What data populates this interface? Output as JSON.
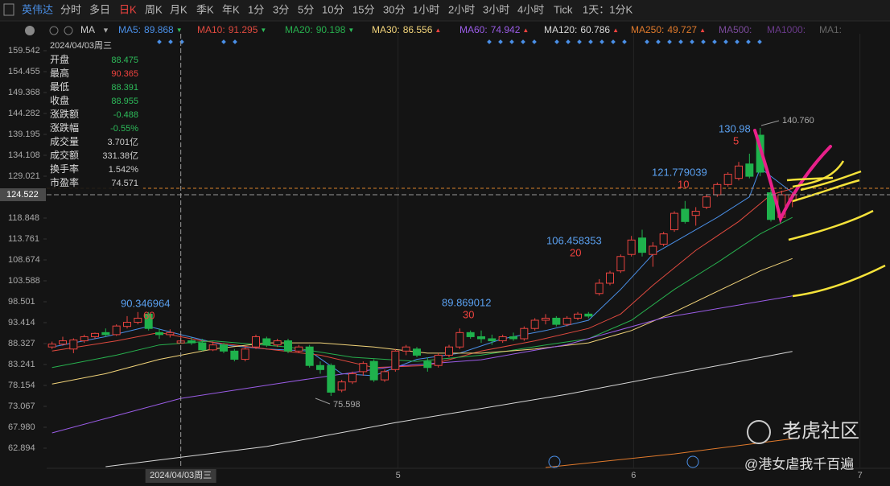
{
  "toolbar": {
    "stock": "英伟达",
    "periods": [
      "分时",
      "多日",
      "日K",
      "周K",
      "月K",
      "季K",
      "年K",
      "1分",
      "3分",
      "5分",
      "10分",
      "15分",
      "30分",
      "1小时",
      "2小时",
      "3小时",
      "4小时",
      "Tick",
      "1天：1分K"
    ],
    "active": 2
  },
  "indicator": "MA",
  "inactive_indicators": [
    "MA500:",
    "MA1000:",
    "MA1:"
  ],
  "info_panel": {
    "date": "2024/04/03周三",
    "rows": [
      {
        "label": "开盘",
        "value": "88.475",
        "color": "#2dbb5a"
      },
      {
        "label": "最高",
        "value": "90.365",
        "color": "#f0433f"
      },
      {
        "label": "最低",
        "value": "88.391",
        "color": "#2dbb5a"
      },
      {
        "label": "收盘",
        "value": "88.955",
        "color": "#2dbb5a"
      },
      {
        "label": "涨跌额",
        "value": "-0.488",
        "color": "#2dbb5a"
      },
      {
        "label": "涨跌幅",
        "value": "-0.55%",
        "color": "#2dbb5a"
      },
      {
        "label": "成交量",
        "value": "3.701亿",
        "color": "#cccccc"
      },
      {
        "label": "成交额",
        "value": "331.38亿",
        "color": "#cccccc"
      },
      {
        "label": "换手率",
        "value": "1.542%",
        "color": "#cccccc"
      },
      {
        "label": "市盈率",
        "value": "74.571",
        "color": "#cccccc"
      }
    ]
  },
  "annotations": [
    "90.346964",
    "60",
    "89.869012",
    "30",
    "106.458353",
    "20",
    "121.779039",
    "10",
    "130.98",
    "5",
    "140.760",
    "75.598"
  ],
  "watermark": {
    "brand": "老虎社区",
    "author": "@港女虐我千百遍"
  },
  "chart_data": {
    "type": "candlestick",
    "up_color": "#e8433f",
    "down_color": "#1fb24c",
    "ylim": [
      58.0,
      163.65
    ],
    "yticks": [
      159.542,
      154.455,
      149.368,
      144.282,
      139.195,
      134.108,
      129.021,
      118.848,
      113.761,
      108.674,
      103.588,
      98.501,
      93.414,
      88.327,
      83.241,
      78.154,
      73.067,
      {
        "value": 67.98,
        "label": "67.980"
      },
      62.894
    ],
    "xlim": [
      -0.5,
      78.1
    ],
    "xticks": [
      {
        "value": 32.25,
        "label": "5"
      },
      {
        "value": 54.2,
        "label": "6"
      },
      {
        "value": 75.3,
        "label": "7"
      }
    ],
    "crosshair": {
      "index": 12,
      "date": "2024/04/03周三",
      "price": 124.522
    },
    "open": [
      87.5,
      88.2,
      87.0,
      89.0,
      90.0,
      91.0,
      90.5,
      92.5,
      93.5,
      95.5,
      91.0,
      90.5,
      88.475,
      89.0,
      88.5,
      86.8,
      88.0,
      86.5,
      84.5,
      87.5,
      89.5,
      88.0,
      89.0,
      86.5,
      87.5,
      83.0,
      83.0,
      77.0,
      79.0,
      81.5,
      84.0,
      79.5,
      82.0,
      86.5,
      87.0,
      84.0,
      83.0,
      85.5,
      87.5,
      91.0,
      90.0,
      89.5,
      89.0,
      90.0,
      89.5,
      92.0,
      94.0,
      94.5,
      93.0,
      94.5,
      95.5,
      100.5,
      103.0,
      106.0,
      110.0,
      114.0,
      110.0,
      112.5,
      116.0,
      121.0,
      119.5,
      121.5,
      124.5,
      127.0,
      128.5,
      132.0,
      139.0,
      125.0,
      119.0,
      123.0
    ],
    "high": [
      88.8,
      90.0,
      89.6,
      90.5,
      91.0,
      92.0,
      93.0,
      95.0,
      96.0,
      96.0,
      92.0,
      91.8,
      90.365,
      89.8,
      89.5,
      88.8,
      88.5,
      87.0,
      87.5,
      90.5,
      90.0,
      89.5,
      89.5,
      88.0,
      88.0,
      84.0,
      83.5,
      79.5,
      81.5,
      84.0,
      84.5,
      82.0,
      87.0,
      88.0,
      87.5,
      85.0,
      86.0,
      88.0,
      92.0,
      91.5,
      91.5,
      90.5,
      90.5,
      91.0,
      92.5,
      94.5,
      95.5,
      95.0,
      95.0,
      96.0,
      96.0,
      104.0,
      106.0,
      110.0,
      114.5,
      116.0,
      113.0,
      115.5,
      120.5,
      123.0,
      121.5,
      124.5,
      127.5,
      130.0,
      132.5,
      134.5,
      140.76,
      126.5,
      125.5,
      125.0
    ],
    "low": [
      87.0,
      87.8,
      86.0,
      88.5,
      89.5,
      90.0,
      90.2,
      92.0,
      93.0,
      91.5,
      89.5,
      89.8,
      88.391,
      88.0,
      86.5,
      86.5,
      86.0,
      84.0,
      84.0,
      87.0,
      87.5,
      87.5,
      86.0,
      86.0,
      82.5,
      81.0,
      75.598,
      76.5,
      78.5,
      80.5,
      79.0,
      79.0,
      81.5,
      85.5,
      85.0,
      81.5,
      82.5,
      85.0,
      87.0,
      89.5,
      88.5,
      88.0,
      88.5,
      89.0,
      89.0,
      91.5,
      93.0,
      92.5,
      92.5,
      94.0,
      94.5,
      100.0,
      102.5,
      105.5,
      109.5,
      109.5,
      107.0,
      112.0,
      115.5,
      117.5,
      117.0,
      121.0,
      124.0,
      126.5,
      128.0,
      128.5,
      129.0,
      118.0,
      118.5,
      121.5
    ],
    "close": [
      88.2,
      89.0,
      89.2,
      90.0,
      90.8,
      90.5,
      92.6,
      93.5,
      94.5,
      92.0,
      90.5,
      91.0,
      88.955,
      88.5,
      86.8,
      88.0,
      86.5,
      84.5,
      87.0,
      90.0,
      88.0,
      89.0,
      86.5,
      87.5,
      83.0,
      82.0,
      76.5,
      79.0,
      81.0,
      83.5,
      79.5,
      81.5,
      86.5,
      87.5,
      85.5,
      82.5,
      85.5,
      87.5,
      91.0,
      90.0,
      89.5,
      89.0,
      90.0,
      89.5,
      92.0,
      94.0,
      94.5,
      93.0,
      94.5,
      95.5,
      95.0,
      103.0,
      105.5,
      109.5,
      113.5,
      110.5,
      112.0,
      115.0,
      120.0,
      118.0,
      120.5,
      124.0,
      127.0,
      129.5,
      131.5,
      129.0,
      130.0,
      118.5,
      124.5,
      124.522
    ],
    "series": [
      {
        "name": "MA5:",
        "color": "#4a8fe7",
        "legend_value": 89.868,
        "arrow": "▼",
        "arrow_color": "#2dbb5a",
        "x": [
          0,
          5,
          9,
          12,
          16,
          20,
          24,
          27,
          30,
          34,
          38,
          42,
          46,
          50,
          53,
          56,
          59,
          62,
          65,
          66,
          69
        ],
        "values": [
          87.5,
          90.0,
          92.5,
          90.5,
          88.0,
          87.0,
          86.5,
          81.0,
          80.5,
          84.5,
          86.0,
          89.5,
          91.5,
          94.0,
          101.5,
          110.0,
          114.5,
          119.0,
          124.0,
          131.0,
          125.0
        ]
      },
      {
        "name": "MA10:",
        "color": "#e04a3f",
        "legend_value": 91.295,
        "arrow": "▼",
        "arrow_color": "#2dbb5a",
        "x": [
          0,
          6,
          10,
          14,
          20,
          25,
          30,
          35,
          40,
          45,
          50,
          53,
          56,
          60,
          64,
          67,
          69
        ],
        "values": [
          86.5,
          89.0,
          91.0,
          89.0,
          87.0,
          85.5,
          82.5,
          83.0,
          86.5,
          89.0,
          92.0,
          95.5,
          102.5,
          111.0,
          118.0,
          124.5,
          126.0
        ]
      },
      {
        "name": "MA20:",
        "color": "#27b04e",
        "legend_value": 90.198,
        "arrow": "▼",
        "arrow_color": "#2dbb5a",
        "x": [
          0,
          6,
          10,
          15,
          22,
          28,
          34,
          40,
          46,
          50,
          54,
          58,
          62,
          66,
          69
        ],
        "values": [
          82.5,
          85.5,
          88.0,
          89.0,
          87.5,
          85.0,
          84.0,
          85.5,
          88.0,
          89.5,
          94.0,
          101.5,
          108.0,
          115.0,
          119.0
        ]
      },
      {
        "name": "MA30:",
        "color": "#f2d47a",
        "legend_value": 86.556,
        "arrow": "▲",
        "arrow_color": "#f0433f",
        "x": [
          0,
          5,
          10,
          15,
          20,
          25,
          30,
          35,
          40,
          45,
          50,
          54,
          58,
          62,
          66,
          69
        ],
        "values": [
          78.5,
          81.0,
          84.5,
          87.0,
          88.5,
          88.5,
          87.5,
          86.0,
          86.0,
          87.0,
          88.5,
          91.5,
          96.0,
          101.0,
          106.0,
          109.0
        ]
      },
      {
        "name": "MA60:",
        "color": "#9a5ce6",
        "legend_value": 74.942,
        "arrow": "▲",
        "arrow_color": "#f0433f",
        "x": [
          0,
          12,
          22,
          32,
          40,
          48,
          57,
          69
        ],
        "values": [
          66.6,
          75.0,
          79.0,
          82.8,
          84.4,
          88.1,
          94.6,
          99.9
        ]
      },
      {
        "name": "MA120:",
        "color": "#d8d8d8",
        "legend_value": 60.786,
        "arrow": "▲",
        "arrow_color": "#f0433f",
        "x": [
          5,
          20,
          32,
          48,
          69
        ],
        "values": [
          58.4,
          63.3,
          69.1,
          76.0,
          86.4
        ]
      },
      {
        "name": "MA250:",
        "color": "#e07a2c",
        "legend_value": 49.727,
        "arrow": "▲",
        "arrow_color": "#f0433f",
        "x": [
          46,
          58,
          69
        ],
        "values": [
          58.2,
          61.5,
          65.2
        ]
      }
    ]
  }
}
